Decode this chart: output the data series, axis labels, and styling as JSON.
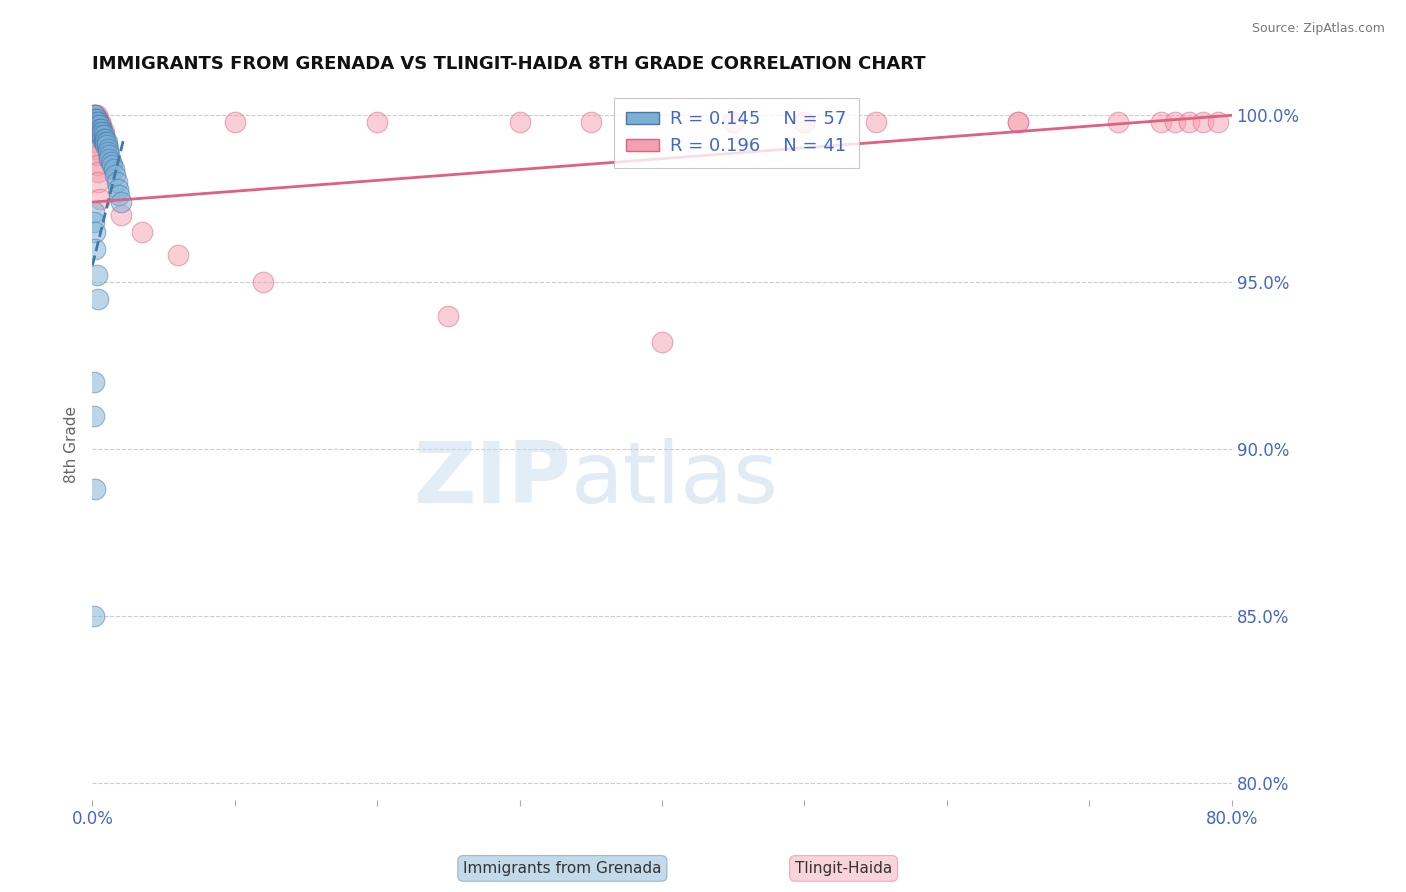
{
  "title": "IMMIGRANTS FROM GRENADA VS TLINGIT-HAIDA 8TH GRADE CORRELATION CHART",
  "source_text": "Source: ZipAtlas.com",
  "ylabel": "8th Grade",
  "watermark_zip": "ZIP",
  "watermark_atlas": "atlas",
  "xlim": [
    0.0,
    0.8
  ],
  "ylim": [
    0.795,
    1.008
  ],
  "x_ticks": [
    0.0,
    0.1,
    0.2,
    0.3,
    0.4,
    0.5,
    0.6,
    0.7,
    0.8
  ],
  "x_tick_labels": [
    "0.0%",
    "",
    "",
    "",
    "",
    "",
    "",
    "",
    "80.0%"
  ],
  "y_ticks": [
    0.8,
    0.85,
    0.9,
    0.95,
    1.0
  ],
  "y_tick_labels": [
    "80.0%",
    "85.0%",
    "90.0%",
    "95.0%",
    "100.0%"
  ],
  "legend_R1": "0.145",
  "legend_N1": "57",
  "legend_R2": "0.196",
  "legend_N2": "41",
  "color_blue": "#7BAFD4",
  "color_pink": "#F4A0B0",
  "color_blue_dark": "#4477AA",
  "color_pink_dark": "#E06080",
  "color_text": "#4466CC",
  "blue_scatter_x": [
    0.001,
    0.001,
    0.001,
    0.002,
    0.002,
    0.002,
    0.002,
    0.002,
    0.003,
    0.003,
    0.003,
    0.003,
    0.003,
    0.004,
    0.004,
    0.004,
    0.004,
    0.005,
    0.005,
    0.005,
    0.005,
    0.006,
    0.006,
    0.006,
    0.007,
    0.007,
    0.007,
    0.008,
    0.008,
    0.008,
    0.009,
    0.009,
    0.009,
    0.01,
    0.01,
    0.011,
    0.011,
    0.012,
    0.012,
    0.013,
    0.014,
    0.015,
    0.016,
    0.017,
    0.018,
    0.019,
    0.02,
    0.001,
    0.001,
    0.002,
    0.002,
    0.003,
    0.004,
    0.001,
    0.001,
    0.002,
    0.001
  ],
  "blue_scatter_y": [
    1.0,
    0.999,
    0.998,
    1.0,
    0.999,
    0.998,
    0.997,
    0.996,
    0.999,
    0.998,
    0.997,
    0.996,
    0.995,
    0.998,
    0.997,
    0.996,
    0.995,
    0.997,
    0.996,
    0.995,
    0.994,
    0.996,
    0.995,
    0.994,
    0.995,
    0.994,
    0.993,
    0.994,
    0.993,
    0.992,
    0.993,
    0.992,
    0.991,
    0.992,
    0.991,
    0.99,
    0.989,
    0.988,
    0.987,
    0.986,
    0.985,
    0.984,
    0.982,
    0.98,
    0.978,
    0.976,
    0.974,
    0.971,
    0.968,
    0.965,
    0.96,
    0.952,
    0.945,
    0.92,
    0.91,
    0.888,
    0.85
  ],
  "pink_scatter_x": [
    0.001,
    0.001,
    0.002,
    0.002,
    0.003,
    0.003,
    0.003,
    0.004,
    0.004,
    0.005,
    0.006,
    0.007,
    0.008,
    0.001,
    0.002,
    0.003,
    0.003,
    0.004,
    0.004,
    0.005,
    0.3,
    0.45,
    0.55,
    0.65,
    0.72,
    0.75,
    0.76,
    0.77,
    0.78,
    0.79,
    0.1,
    0.2,
    0.35,
    0.5,
    0.65,
    0.02,
    0.035,
    0.06,
    0.12,
    0.25,
    0.4
  ],
  "pink_scatter_y": [
    1.0,
    0.999,
    1.0,
    0.999,
    1.0,
    0.999,
    0.998,
    0.999,
    0.998,
    0.998,
    0.997,
    0.996,
    0.995,
    0.992,
    0.99,
    0.988,
    0.985,
    0.983,
    0.98,
    0.975,
    0.998,
    0.998,
    0.998,
    0.998,
    0.998,
    0.998,
    0.998,
    0.998,
    0.998,
    0.998,
    0.998,
    0.998,
    0.998,
    0.998,
    0.998,
    0.97,
    0.965,
    0.958,
    0.95,
    0.94,
    0.932
  ],
  "blue_trend_x": [
    0.0,
    0.022
  ],
  "blue_trend_y": [
    0.955,
    0.993
  ],
  "pink_trend_x": [
    0.0,
    0.8
  ],
  "pink_trend_y": [
    0.974,
    1.0
  ],
  "grid_color": "#CCCCCC",
  "background_color": "#FFFFFF"
}
